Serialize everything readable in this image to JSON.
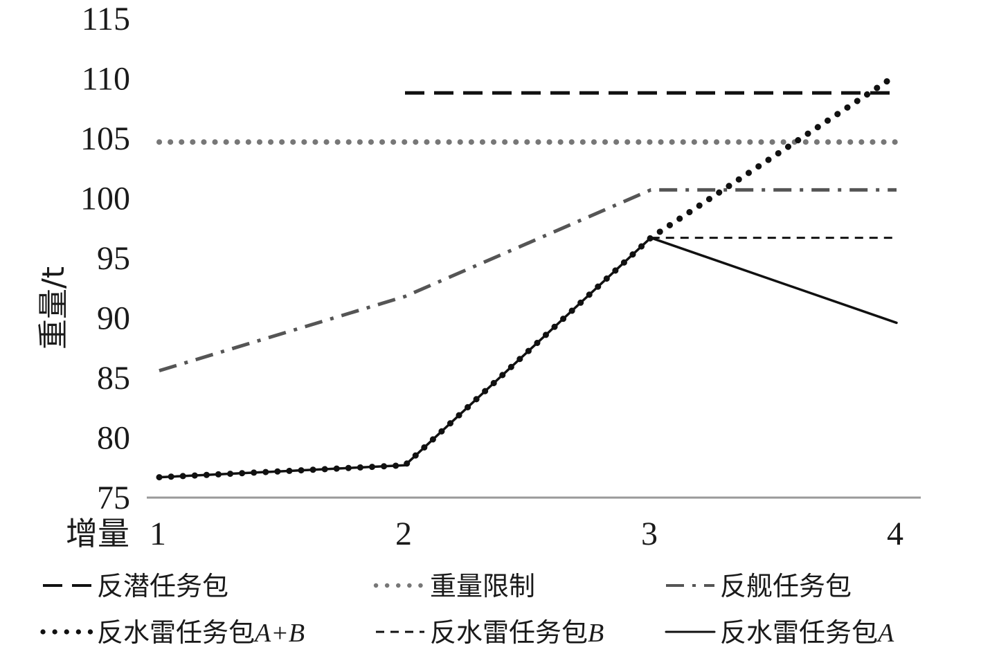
{
  "chart_data": {
    "type": "line",
    "title": "",
    "xlabel": "增量",
    "ylabel": "重量/t",
    "categories": [
      "1",
      "2",
      "3",
      "4"
    ],
    "ylim": [
      75,
      115
    ],
    "yticks": [
      "75",
      "80",
      "85",
      "90",
      "95",
      "100",
      "105",
      "110",
      "115"
    ],
    "grid": false,
    "legend_position": "bottom",
    "series": [
      {
        "name": "反潜任务包",
        "values": [
          null,
          108.8,
          108.8,
          108.8
        ],
        "style": "long-dash",
        "color": "#111111"
      },
      {
        "name": "重量限制",
        "values": [
          104.7,
          104.7,
          104.7,
          104.7
        ],
        "style": "dotted",
        "color": "#777777"
      },
      {
        "name": "反舰任务包",
        "values": [
          85.6,
          91.8,
          100.7,
          100.7
        ],
        "style": "dash-dot",
        "color": "#555555"
      },
      {
        "name": "反水雷任务包A+B",
        "name_base": "反水雷任务包",
        "name_suffix": "A+B",
        "values": [
          76.7,
          77.7,
          96.7,
          110.3
        ],
        "style": "round-dot",
        "color": "#111111"
      },
      {
        "name": "反水雷任务包B",
        "name_base": "反水雷任务包",
        "name_suffix": "B",
        "values": [
          76.7,
          77.7,
          96.7,
          96.7
        ],
        "style": "short-dash",
        "color": "#111111"
      },
      {
        "name": "反水雷任务包A",
        "name_base": "反水雷任务包",
        "name_suffix": "A",
        "values": [
          76.7,
          77.7,
          96.7,
          89.6
        ],
        "style": "solid",
        "color": "#111111"
      }
    ]
  }
}
